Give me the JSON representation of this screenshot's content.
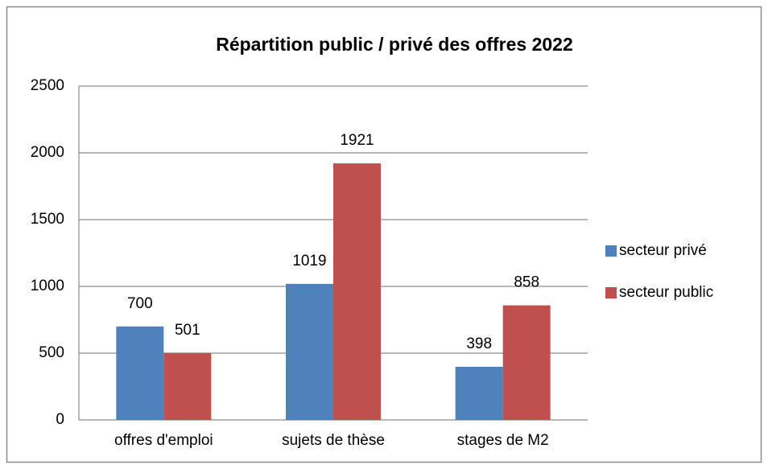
{
  "chart_data": {
    "type": "bar",
    "title": "Répartition public / privé des offres 2022",
    "categories": [
      "offres d'emploi",
      "sujets de thèse",
      "stages de M2"
    ],
    "series": [
      {
        "name": "secteur privé",
        "color": "#4f81bd",
        "values": [
          700,
          1019,
          398
        ]
      },
      {
        "name": "secteur public",
        "color": "#c0504d",
        "values": [
          501,
          1921,
          858
        ]
      }
    ],
    "ylim": [
      0,
      2500
    ],
    "yticks": [
      0,
      500,
      1000,
      1500,
      2000,
      2500
    ],
    "grid": true,
    "legend": "right"
  }
}
